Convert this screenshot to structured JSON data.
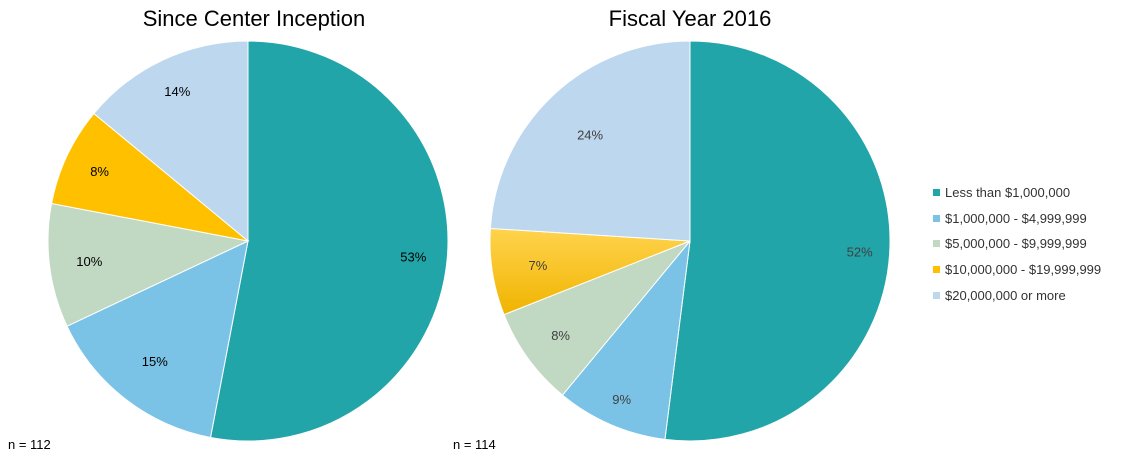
{
  "chart_data": [
    {
      "type": "pie",
      "title": "Since Center Inception",
      "note": "n = 112",
      "categories": [
        "Less than $1,000,000",
        "$1,000,000 - $4,999,999",
        "$5,000,000 - $9,999,999",
        "$10,000,000 - $19,999,999",
        "$20,000,000 or more"
      ],
      "values": [
        53,
        15,
        10,
        8,
        14
      ],
      "labels": [
        "53%",
        "15%",
        "10%",
        "8%",
        "14%"
      ]
    },
    {
      "type": "pie",
      "title": "Fiscal Year 2016",
      "note": "n = 114",
      "categories": [
        "Less than $1,000,000",
        "$1,000,000 - $4,999,999",
        "$5,000,000 - $9,999,999",
        "$10,000,000 - $19,999,999",
        "$20,000,000 or more"
      ],
      "values": [
        52,
        9,
        8,
        7,
        24
      ],
      "labels": [
        "52%",
        "9%",
        "8%",
        "7%",
        "24%"
      ]
    }
  ],
  "legend": {
    "position": "right",
    "items": [
      {
        "label": "Less than $1,000,000",
        "color": "#22A5A8"
      },
      {
        "label": "$1,000,000 - $4,999,999",
        "color": "#7AC3E6"
      },
      {
        "label": "$5,000,000 - $9,999,999",
        "color": "#C1D8C3"
      },
      {
        "label": "$10,000,000 - $19,999,999",
        "color": "#FFC000"
      },
      {
        "label": "$20,000,000 or more",
        "color": "#BDD7EE"
      }
    ]
  },
  "colors": [
    "#22A5A8",
    "#7AC3E6",
    "#C1D8C3",
    "#FFC000",
    "#BDD7EE"
  ]
}
